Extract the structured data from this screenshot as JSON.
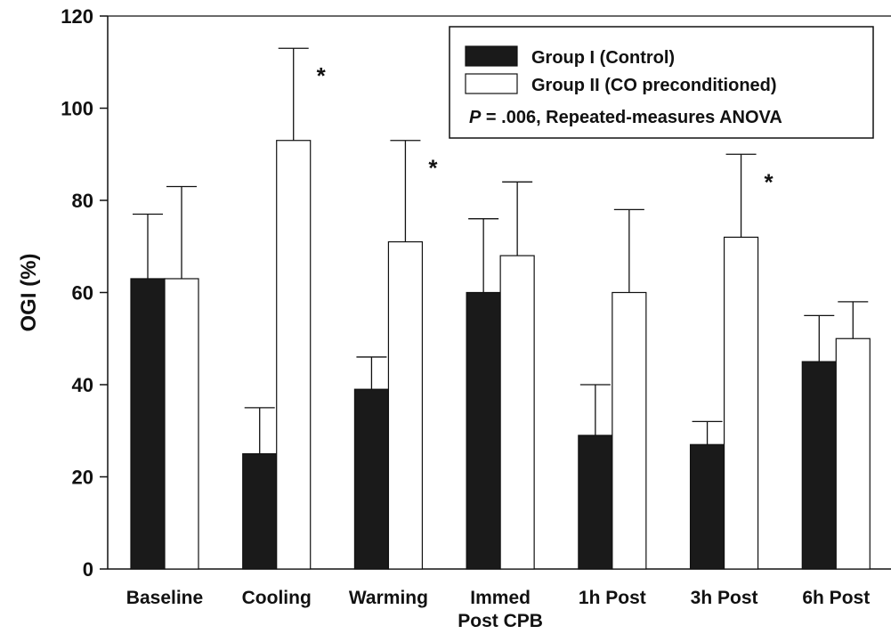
{
  "chart_data": {
    "type": "bar",
    "title": "",
    "xlabel": "",
    "ylabel": "OGI (%)",
    "ylim": [
      0,
      120
    ],
    "yticks": [
      0,
      20,
      40,
      60,
      80,
      100,
      120
    ],
    "categories": [
      [
        "Baseline"
      ],
      [
        "Cooling"
      ],
      [
        "Warming"
      ],
      [
        "Immed",
        "Post CPB"
      ],
      [
        "1h Post"
      ],
      [
        "3h Post"
      ],
      [
        "6h Post"
      ]
    ],
    "series": [
      {
        "name": "Group I (Control)",
        "fill": "#1a1a1a",
        "values": [
          63,
          25,
          39,
          60,
          29,
          27,
          45
        ],
        "error_upper": [
          77,
          35,
          46,
          76,
          40,
          32,
          55
        ]
      },
      {
        "name": "Group II (CO preconditioned)",
        "fill": "#ffffff",
        "values": [
          63,
          93,
          71,
          68,
          60,
          72,
          50
        ],
        "error_upper": [
          83,
          113,
          93,
          84,
          78,
          90,
          58
        ]
      }
    ],
    "significance": [
      {
        "category_index": 1,
        "label": "*"
      },
      {
        "category_index": 2,
        "label": "*"
      },
      {
        "category_index": 5,
        "label": "*"
      }
    ],
    "legend_position": "top-right",
    "annotation": {
      "italic": "P",
      "text": " = .006, Repeated-measures ANOVA"
    },
    "grid": false
  }
}
